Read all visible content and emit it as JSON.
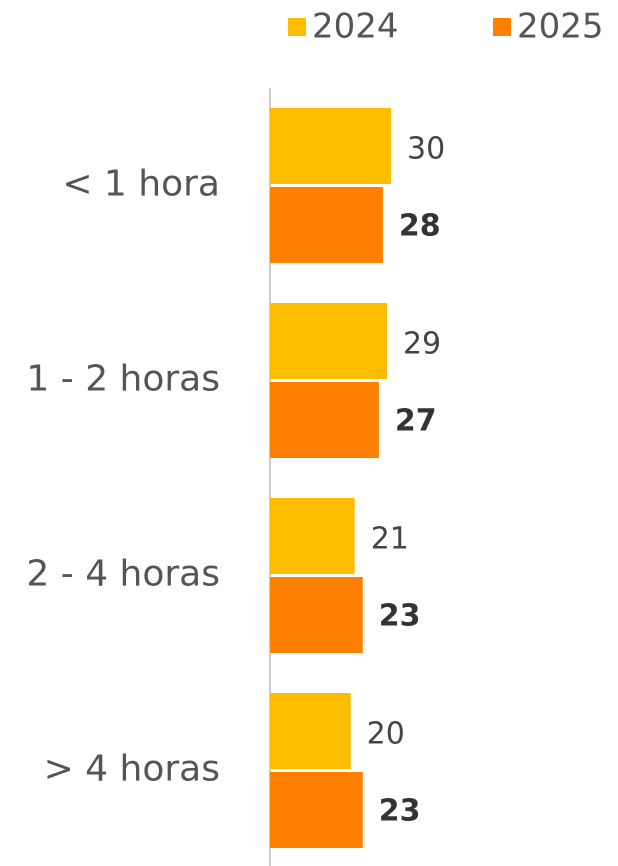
{
  "chart_data": {
    "type": "bar",
    "orientation": "horizontal",
    "categories": [
      "< 1 hora",
      "1 - 2 horas",
      "2 - 4 horas",
      "> 4 horas"
    ],
    "series": [
      {
        "name": "2024",
        "color": "#fdbd00",
        "values": [
          30,
          29,
          21,
          20
        ]
      },
      {
        "name": "2025",
        "color": "#ff7f00",
        "values": [
          28,
          27,
          23,
          23
        ]
      }
    ],
    "legend": "top-right"
  }
}
